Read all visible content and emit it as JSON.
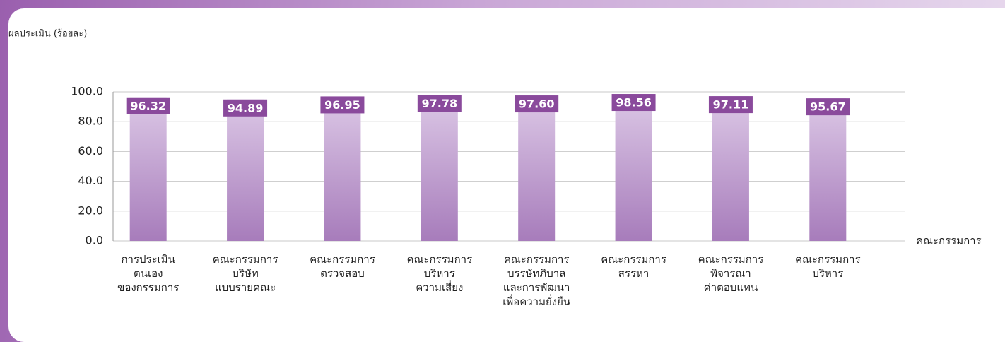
{
  "chart_data": {
    "type": "bar",
    "ylabel": "ผลประเมิน (ร้อยละ)",
    "xlabel": "คณะกรรมการ",
    "categories": [
      "การประเมิน\nตนเอง\nของกรรมการ",
      "คณะกรรมการ\nบริษัท\nแบบรายคณะ",
      "คณะกรรมการ\nตรวจสอบ",
      "คณะกรรมการ\nบริหาร\nความเสี่ยง",
      "คณะกรรมการ\nบรรษัทภิบาล\nและการพัฒนา\nเพื่อความยั่งยืน",
      "คณะกรรมการ\nสรรหา",
      "คณะกรรมการ\nพิจารณา\nค่าตอบแทน",
      "คณะกรรมการ\nบริหาร"
    ],
    "values": [
      96.32,
      94.89,
      96.95,
      97.78,
      97.6,
      98.56,
      97.11,
      95.67
    ],
    "value_labels": [
      "96.32",
      "94.89",
      "96.95",
      "97.78",
      "97.60",
      "98.56",
      "97.11",
      "95.67"
    ],
    "color": "#a77cbb",
    "label_color": "#8a4a9c",
    "ylim": [
      0,
      100
    ],
    "yticks": [
      {
        "value": 0,
        "label": "0.0"
      },
      {
        "value": 20,
        "label": "20.0"
      },
      {
        "value": 40,
        "label": "40.0"
      },
      {
        "value": 60,
        "label": "60.0"
      },
      {
        "value": 80,
        "label": "80.0"
      },
      {
        "value": 100,
        "label": "100.0"
      }
    ],
    "grid": true
  }
}
